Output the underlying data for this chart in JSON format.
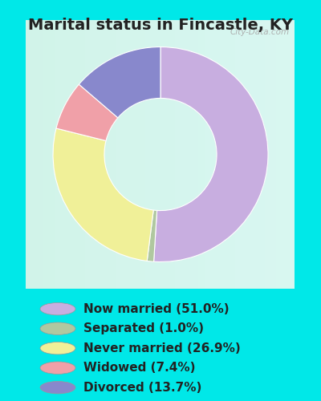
{
  "title": "Marital status in Fincastle, KY",
  "slices": [
    51.0,
    1.0,
    26.9,
    7.4,
    13.7
  ],
  "colors": [
    "#c8aee0",
    "#b0c8a0",
    "#f0f098",
    "#f0a0a8",
    "#8888cc"
  ],
  "labels": [
    "Now married (51.0%)",
    "Separated (1.0%)",
    "Never married (26.9%)",
    "Widowed (7.4%)",
    "Divorced (13.7%)"
  ],
  "bg_outer": "#00e8e8",
  "bg_chart": "#d5ecd8",
  "title_fontsize": 14,
  "legend_fontsize": 11,
  "startangle": 90,
  "donut_width": 0.42,
  "title_color": "#222222",
  "legend_text_color": "#222222"
}
